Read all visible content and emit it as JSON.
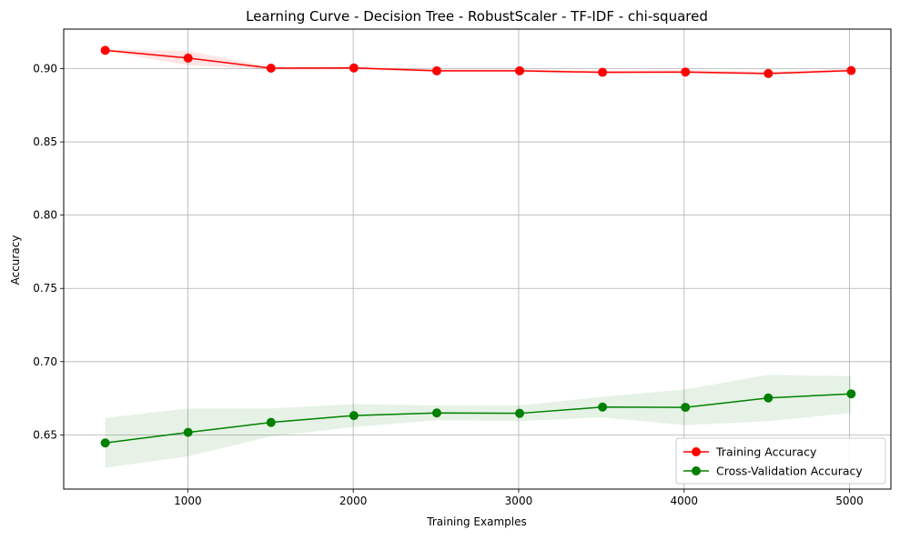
{
  "chart_data": {
    "type": "line",
    "title": "Learning Curve - Decision Tree - RobustScaler - TF-IDF - chi-squared",
    "xlabel": "Training Examples",
    "ylabel": "Accuracy",
    "xlim": [
      250,
      5250
    ],
    "ylim": [
      0.613,
      0.927
    ],
    "x_ticks": [
      1000,
      2000,
      3000,
      4000,
      5000
    ],
    "x_tick_labels": [
      "1000",
      "2000",
      "3000",
      "4000",
      "5000"
    ],
    "y_ticks": [
      0.65,
      0.7,
      0.75,
      0.8,
      0.85,
      0.9
    ],
    "y_tick_labels": [
      "0.65",
      "0.70",
      "0.75",
      "0.80",
      "0.85",
      "0.90"
    ],
    "grid": true,
    "legend_position": "lower-right",
    "x": [
      501,
      1002,
      1503,
      2004,
      2505,
      3006,
      3507,
      4008,
      4509,
      5010
    ],
    "series": [
      {
        "name": "Training Accuracy",
        "color": "#ff0000",
        "band_color": "#ff0000",
        "values": [
          0.9125,
          0.9072,
          0.9003,
          0.9005,
          0.8985,
          0.8985,
          0.8975,
          0.8977,
          0.8967,
          0.8987
        ],
        "upper": [
          0.913,
          0.912,
          0.9013,
          0.9015,
          0.8995,
          0.8995,
          0.8985,
          0.899,
          0.898,
          0.8997
        ],
        "lower": [
          0.912,
          0.9024,
          0.8993,
          0.8995,
          0.8975,
          0.8975,
          0.8965,
          0.8964,
          0.8954,
          0.8977
        ]
      },
      {
        "name": "Cross-Validation Accuracy",
        "color": "#008000",
        "band_color": "#008000",
        "values": [
          0.6445,
          0.6517,
          0.6585,
          0.6632,
          0.665,
          0.6647,
          0.669,
          0.6688,
          0.6752,
          0.678
        ],
        "upper": [
          0.6615,
          0.668,
          0.668,
          0.671,
          0.67,
          0.67,
          0.676,
          0.681,
          0.691,
          0.69
        ],
        "lower": [
          0.6275,
          0.6354,
          0.649,
          0.6554,
          0.66,
          0.6594,
          0.662,
          0.6566,
          0.6594,
          0.665
        ]
      }
    ]
  }
}
